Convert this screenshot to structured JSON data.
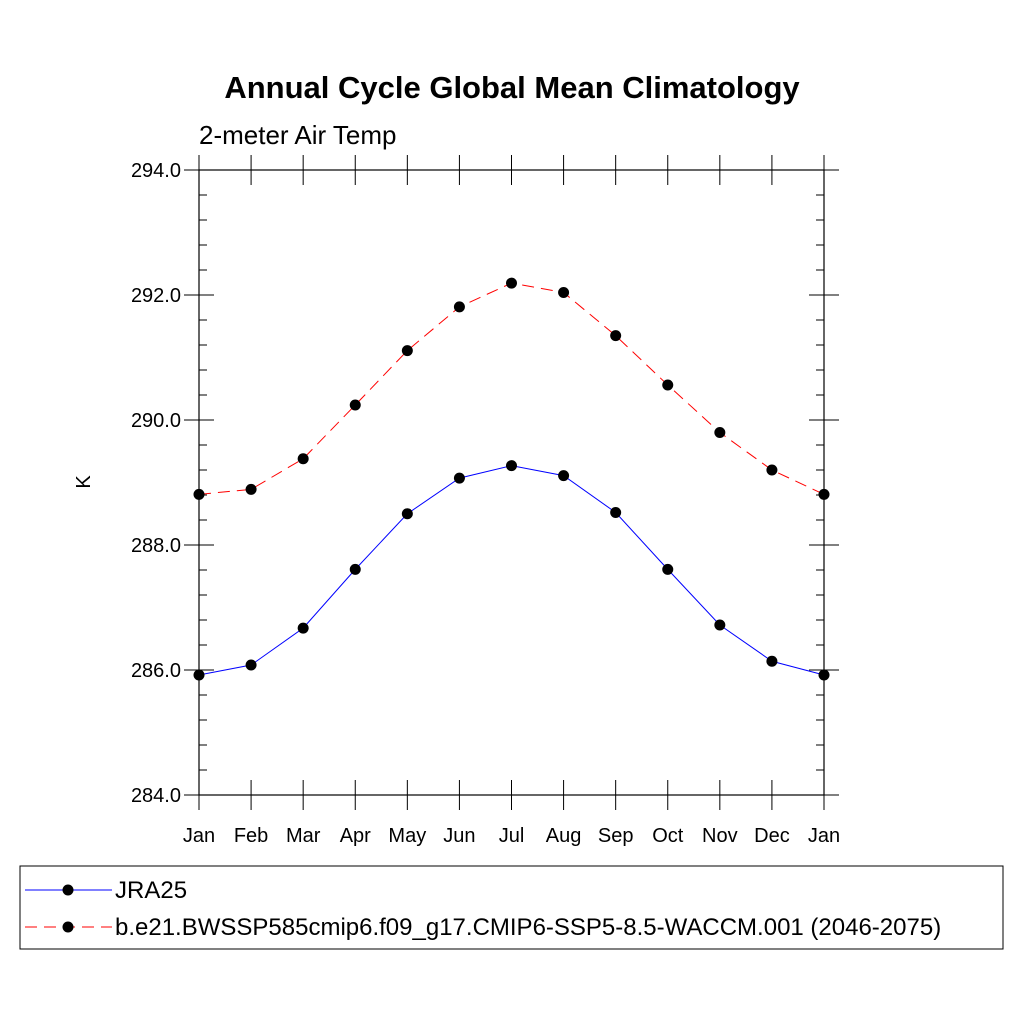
{
  "chart_data": {
    "type": "line",
    "title": "Annual Cycle Global Mean Climatology",
    "subtitle": "2-meter Air Temp",
    "xlabel": "",
    "ylabel": "K",
    "categories": [
      "Jan",
      "Feb",
      "Mar",
      "Apr",
      "May",
      "Jun",
      "Jul",
      "Aug",
      "Sep",
      "Oct",
      "Nov",
      "Dec",
      "Jan"
    ],
    "ylim": [
      284.0,
      294.0
    ],
    "yticks": [
      "284.0",
      "286.0",
      "288.0",
      "290.0",
      "292.0",
      "294.0"
    ],
    "grid": false,
    "legend_position": "bottom",
    "series": [
      {
        "name": "JRA25",
        "color": "#0000ff",
        "dash": "solid",
        "marker": "filled-circle",
        "values": [
          285.92,
          286.08,
          286.67,
          287.61,
          288.5,
          289.07,
          289.27,
          289.11,
          288.52,
          287.61,
          286.72,
          286.14,
          285.92
        ]
      },
      {
        "name": "b.e21.BWSSP585cmip6.f09_g17.CMIP6-SSP5-8.5-WACCM.001 (2046-2075)",
        "color": "#ff0000",
        "dash": "dashed",
        "marker": "filled-circle",
        "values": [
          288.81,
          288.89,
          289.38,
          290.24,
          291.11,
          291.81,
          292.19,
          292.04,
          291.35,
          290.56,
          289.8,
          289.2,
          288.81
        ]
      }
    ]
  }
}
